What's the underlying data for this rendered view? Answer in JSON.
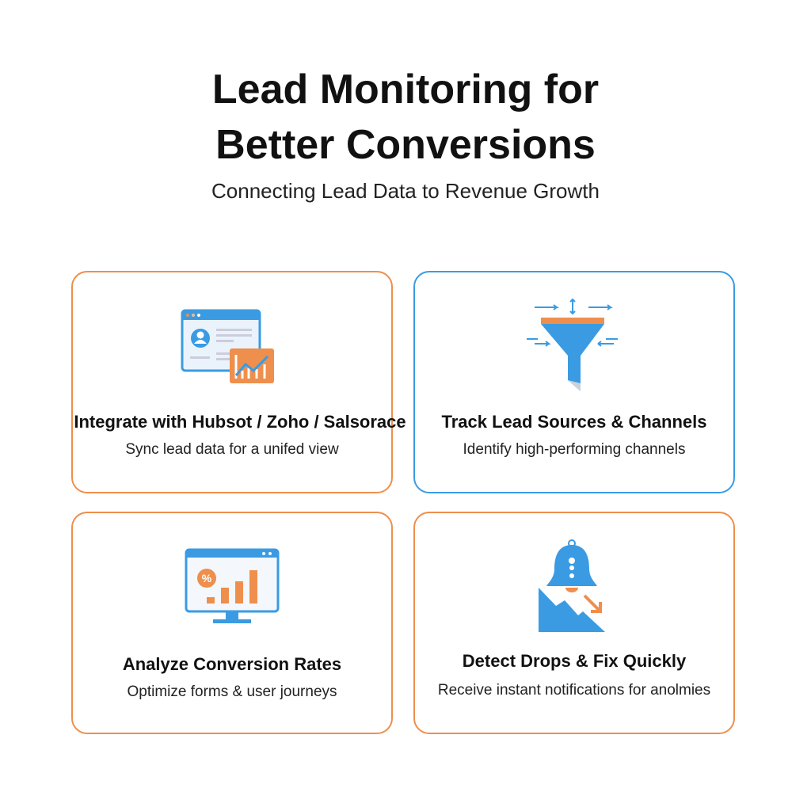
{
  "header": {
    "title_line1": "Lead Monitoring for",
    "title_line2": "Better Conversions",
    "subtitle": "Connecting Lead Data to Revenue Growth"
  },
  "colors": {
    "orange": "#ee8f4d",
    "blue": "#3a9be3"
  },
  "cards": [
    {
      "icon": "crm-dashboard-icon",
      "title": "Integrate with Hubsot / Zoho / Salsorace",
      "description": "Sync lead data for a unifed view"
    },
    {
      "icon": "funnel-icon",
      "title": "Track Lead Sources & Channels",
      "description": "Identify high-performing channels"
    },
    {
      "icon": "conversion-chart-monitor-icon",
      "title": "Analyze Conversion Rates",
      "description": "Optimize forms & user journeys"
    },
    {
      "icon": "alert-bell-drop-icon",
      "title": "Detect Drops & Fix Quickly",
      "description": "Receive instant notifications for anolmies"
    }
  ]
}
